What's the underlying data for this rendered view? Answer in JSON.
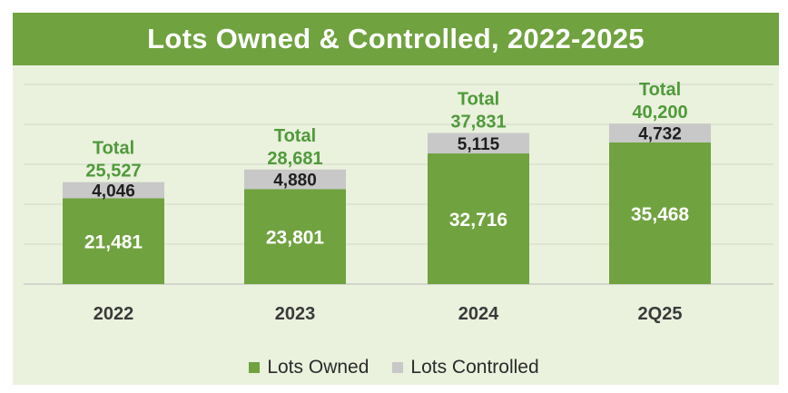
{
  "chart_data": {
    "type": "bar",
    "stacked": true,
    "title": "Lots Owned & Controlled, 2022-2025",
    "categories": [
      "2022",
      "2023",
      "2024",
      "2Q25"
    ],
    "series": [
      {
        "name": "Lots Owned",
        "color": "#70a23f",
        "values": [
          21481,
          23801,
          32716,
          35468
        ]
      },
      {
        "name": "Lots Controlled",
        "color": "#c8c8c8",
        "values": [
          4046,
          4880,
          5115,
          4732
        ]
      }
    ],
    "totals_label": "Total",
    "totals": [
      25527,
      28681,
      37831,
      40200
    ],
    "ylim": [
      0,
      50000
    ],
    "grid": true,
    "legend_position": "bottom"
  },
  "colors": {
    "title_bg": "#70a23f",
    "panel_bg": "#eaf1dd",
    "owned": "#70a23f",
    "controlled": "#c8c8c8",
    "total_text": "#4f9a3a",
    "axis_text": "#3a3a3a"
  },
  "legend": [
    {
      "label": "Lots Owned"
    },
    {
      "label": "Lots Controlled"
    }
  ]
}
